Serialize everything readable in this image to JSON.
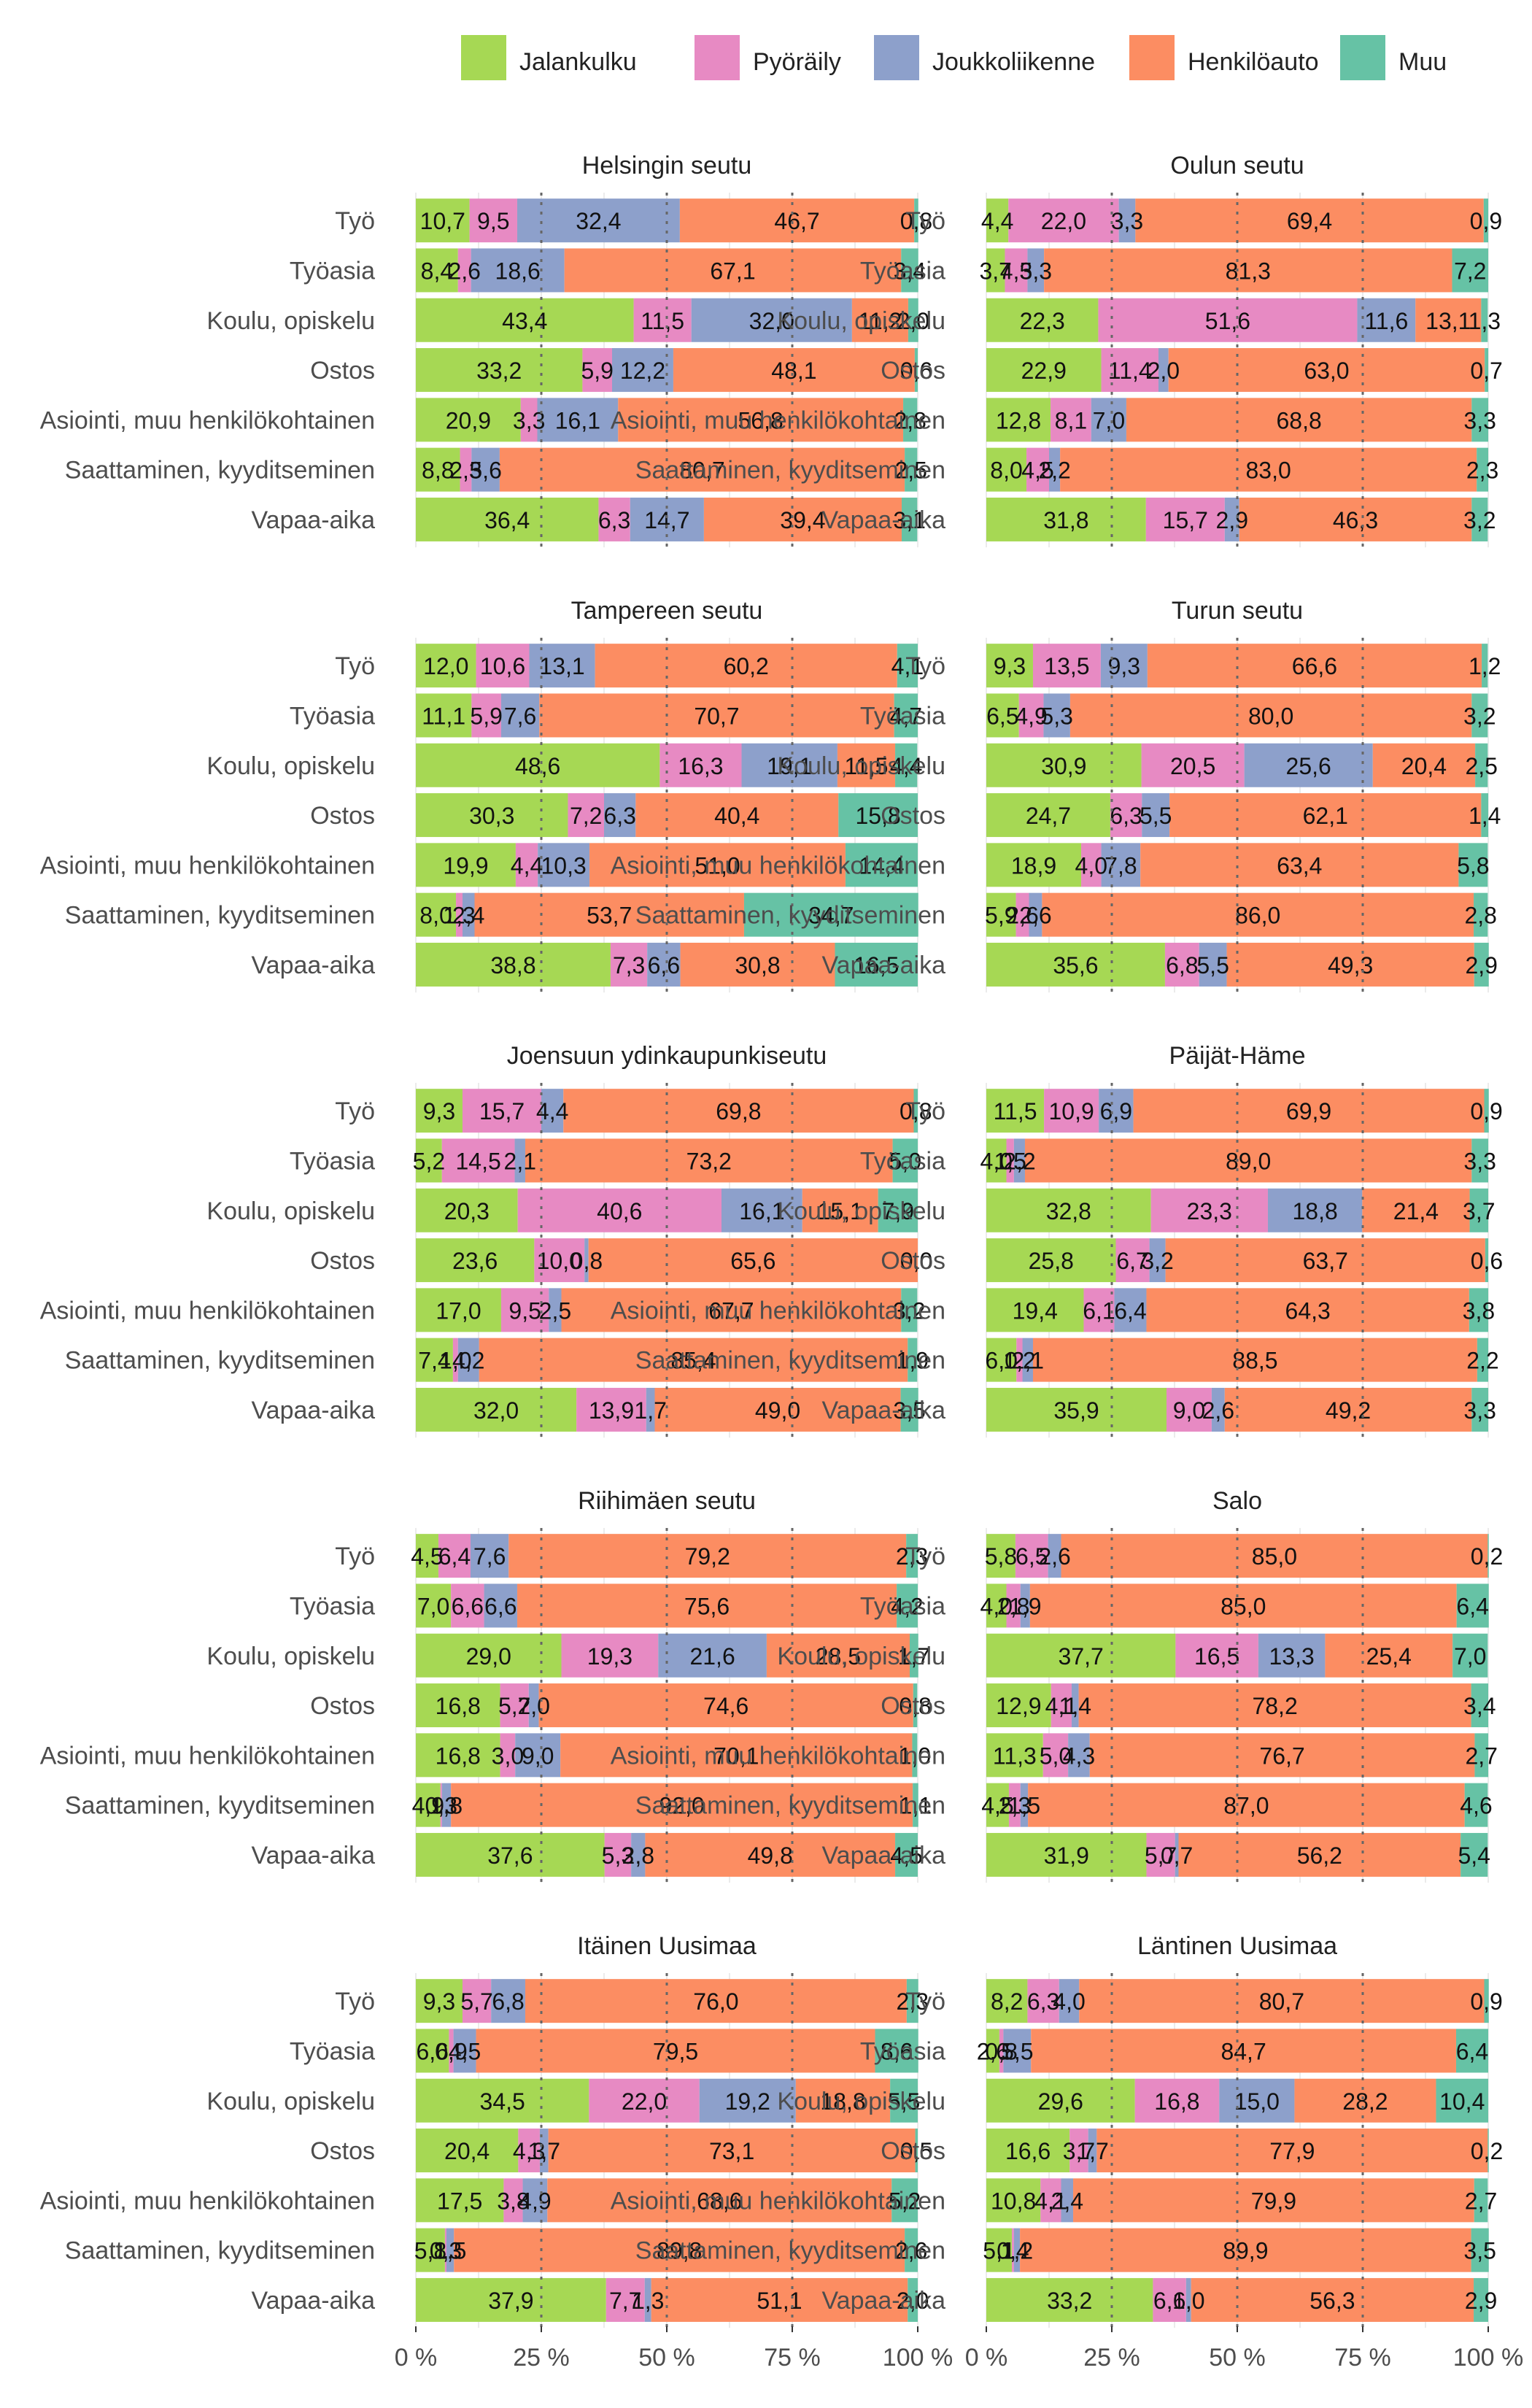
{
  "chart_data": {
    "type": "bar",
    "orientation": "horizontal",
    "stacked": true,
    "percent": true,
    "xlim": [
      0,
      100
    ],
    "x_ticks": [
      "0 %",
      "25 %",
      "50 %",
      "75 %",
      "100 %"
    ],
    "legend_position": "top",
    "categories": [
      "Työ",
      "Työasia",
      "Koulu, opiskelu",
      "Ostos",
      "Asiointi, muu henkilökohtainen",
      "Saattaminen, kyyditseminen",
      "Vapaa-aika"
    ],
    "modes": [
      {
        "name": "Jalankulku",
        "color": "#a6d854"
      },
      {
        "name": "Pyöräily",
        "color": "#e78ac3"
      },
      {
        "name": "Joukkoliikenne",
        "color": "#8da0cb"
      },
      {
        "name": "Henkilöauto",
        "color": "#fc8d62"
      },
      {
        "name": "Muu",
        "color": "#66c2a5"
      }
    ],
    "panels": [
      {
        "title": "Helsingin seutu",
        "rows": [
          [
            "10,7",
            "9,5",
            "32,4",
            "46,7",
            "0,8"
          ],
          [
            "8,4",
            "2,6",
            "18,6",
            "67,1",
            "3,4"
          ],
          [
            "43,4",
            "11,5",
            "32,0",
            "11,2",
            "2,0"
          ],
          [
            "33,2",
            "5,9",
            "12,2",
            "48,1",
            "0,6"
          ],
          [
            "20,9",
            "3,3",
            "16,1",
            "56,8",
            "2,8"
          ],
          [
            "8,8",
            "2,3",
            "5,6",
            "80,7",
            "2,5"
          ],
          [
            "36,4",
            "6,3",
            "14,7",
            "39,4",
            "3,1"
          ]
        ]
      },
      {
        "title": "Oulun seutu",
        "rows": [
          [
            "4,4",
            "22,0",
            "3,3",
            "69,4",
            "0,9"
          ],
          [
            "3,7",
            "4,5",
            "3,3",
            "81,3",
            "7,2"
          ],
          [
            "22,3",
            "51,6",
            "11,6",
            "13,1",
            "1,3"
          ],
          [
            "22,9",
            "11,4",
            "2,0",
            "63,0",
            "0,7"
          ],
          [
            "12,8",
            "8,1",
            "7,0",
            "68,8",
            "3,3"
          ],
          [
            "8,0",
            "4,5",
            "2,2",
            "83,0",
            "2,3"
          ],
          [
            "31,8",
            "15,7",
            "2,9",
            "46,3",
            "3,2"
          ]
        ]
      },
      {
        "title": "Tampereen seutu",
        "rows": [
          [
            "12,0",
            "10,6",
            "13,1",
            "60,2",
            "4,1"
          ],
          [
            "11,1",
            "5,9",
            "7,6",
            "70,7",
            "4,7"
          ],
          [
            "48,6",
            "16,3",
            "19,1",
            "11,5",
            "4,4"
          ],
          [
            "30,3",
            "7,2",
            "6,3",
            "40,4",
            "15,8"
          ],
          [
            "19,9",
            "4,4",
            "10,3",
            "51,0",
            "14,4"
          ],
          [
            "8,0",
            "1,3",
            "2,4",
            "53,7",
            "34,7"
          ],
          [
            "38,8",
            "7,3",
            "6,6",
            "30,8",
            "16,5"
          ]
        ]
      },
      {
        "title": "Turun seutu",
        "rows": [
          [
            "9,3",
            "13,5",
            "9,3",
            "66,6",
            "1,2"
          ],
          [
            "6,5",
            "4,9",
            "5,3",
            "80,0",
            "3,2"
          ],
          [
            "30,9",
            "20,5",
            "25,6",
            "20,4",
            "2,5"
          ],
          [
            "24,7",
            "6,3",
            "5,5",
            "62,1",
            "1,4"
          ],
          [
            "18,9",
            "4,0",
            "7,8",
            "63,4",
            "5,8"
          ],
          [
            "5,9",
            "2,6",
            "2,6",
            "86,0",
            "2,8"
          ],
          [
            "35,6",
            "6,8",
            "5,5",
            "49,3",
            "2,9"
          ]
        ]
      },
      {
        "title": "Joensuun ydinkaupunkiseutu",
        "rows": [
          [
            "9,3",
            "15,7",
            "4,4",
            "69,8",
            "0,8"
          ],
          [
            "5,2",
            "14,5",
            "2,1",
            "73,2",
            "5,0"
          ],
          [
            "20,3",
            "40,6",
            "16,1",
            "15,1",
            "7,9"
          ],
          [
            "23,6",
            "10,0",
            "0,8",
            "65,6",
            "0,0"
          ],
          [
            "17,0",
            "9,5",
            "2,5",
            "67,7",
            "3,2"
          ],
          [
            "7,4",
            "1,0",
            "4,2",
            "85,4",
            "1,9"
          ],
          [
            "32,0",
            "13,9",
            "1,7",
            "49,0",
            "3,5"
          ]
        ]
      },
      {
        "title": "Päijät-Häme",
        "rows": [
          [
            "11,5",
            "10,9",
            "6,9",
            "69,9",
            "0,9"
          ],
          [
            "4,0",
            "1,5",
            "2,2",
            "89,0",
            "3,3"
          ],
          [
            "32,8",
            "23,3",
            "18,8",
            "21,4",
            "3,7"
          ],
          [
            "25,8",
            "6,7",
            "3,2",
            "63,7",
            "0,6"
          ],
          [
            "19,4",
            "6,1",
            "6,4",
            "64,3",
            "3,8"
          ],
          [
            "6,0",
            "1,2",
            "2,1",
            "88,5",
            "2,2"
          ],
          [
            "35,9",
            "9,0",
            "2,6",
            "49,2",
            "3,3"
          ]
        ]
      },
      {
        "title": "Riihimäen seutu",
        "rows": [
          [
            "4,5",
            "6,4",
            "7,6",
            "79,2",
            "2,3"
          ],
          [
            "7,0",
            "6,6",
            "6,6",
            "75,6",
            "4,2"
          ],
          [
            "29,0",
            "19,3",
            "21,6",
            "28,5",
            "1,7"
          ],
          [
            "16,8",
            "5,7",
            "2,0",
            "74,6",
            "0,8"
          ],
          [
            "16,8",
            "3,0",
            "9,0",
            "70,1",
            "1,0"
          ],
          [
            "4,9",
            "0,3",
            "1,8",
            "92,0",
            "1,1"
          ],
          [
            "37,6",
            "5,3",
            "2,8",
            "49,8",
            "4,5"
          ]
        ]
      },
      {
        "title": "Salo",
        "rows": [
          [
            "5,8",
            "6,5",
            "2,6",
            "85,0",
            "0,2"
          ],
          [
            "4,0",
            "2,8",
            "1,9",
            "85,0",
            "6,4"
          ],
          [
            "37,7",
            "16,5",
            "13,3",
            "25,4",
            "7,0"
          ],
          [
            "12,9",
            "4,1",
            "1,4",
            "78,2",
            "3,4"
          ],
          [
            "11,3",
            "5,0",
            "4,3",
            "76,7",
            "2,7"
          ],
          [
            "4,5",
            "2,3",
            "1,5",
            "87,0",
            "4,6"
          ],
          [
            "31,9",
            "5,7",
            "0,7",
            "56,2",
            "5,4"
          ]
        ]
      },
      {
        "title": "Itäinen Uusimaa",
        "rows": [
          [
            "9,3",
            "5,7",
            "6,8",
            "76,0",
            "2,3"
          ],
          [
            "6,6",
            "0,9",
            "4,5",
            "79,5",
            "8,6"
          ],
          [
            "34,5",
            "22,0",
            "19,2",
            "18,8",
            "5,5"
          ],
          [
            "20,4",
            "4,3",
            "1,7",
            "73,1",
            "0,5"
          ],
          [
            "17,5",
            "3,8",
            "4,9",
            "68,6",
            "5,2"
          ],
          [
            "5,8",
            "0,3",
            "1,5",
            "89,8",
            "2,6"
          ],
          [
            "37,9",
            "7,7",
            "1,3",
            "51,1",
            "2,0"
          ]
        ]
      },
      {
        "title": "Läntinen Uusimaa",
        "rows": [
          [
            "8,2",
            "6,3",
            "4,0",
            "80,7",
            "0,9"
          ],
          [
            "2,6",
            "0,8",
            "5,5",
            "84,7",
            "6,4"
          ],
          [
            "29,6",
            "16,8",
            "15,0",
            "28,2",
            "10,4"
          ],
          [
            "16,6",
            "3,7",
            "1,7",
            "77,9",
            "0,2"
          ],
          [
            "10,8",
            "4,1",
            "2,4",
            "79,9",
            "2,7"
          ],
          [
            "5,1",
            "0,4",
            "1,2",
            "89,9",
            "3,5"
          ],
          [
            "33,2",
            "6,6",
            "1,0",
            "56,3",
            "2,9"
          ]
        ]
      }
    ]
  }
}
